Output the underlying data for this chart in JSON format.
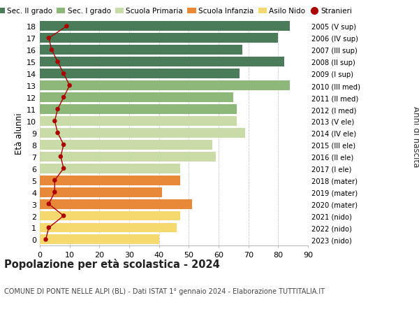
{
  "ages": [
    0,
    1,
    2,
    3,
    4,
    5,
    6,
    7,
    8,
    9,
    10,
    11,
    12,
    13,
    14,
    15,
    16,
    17,
    18
  ],
  "bar_values": [
    40,
    46,
    47,
    51,
    41,
    47,
    47,
    59,
    58,
    69,
    66,
    66,
    65,
    84,
    67,
    82,
    68,
    80,
    84
  ],
  "stranieri": [
    2,
    3,
    8,
    3,
    5,
    5,
    8,
    7,
    8,
    6,
    5,
    6,
    8,
    10,
    8,
    6,
    4,
    3,
    9
  ],
  "bar_colors": [
    "#f5d96e",
    "#f5d96e",
    "#f5d96e",
    "#e8893a",
    "#e8893a",
    "#e8893a",
    "#c9dca8",
    "#c9dca8",
    "#c9dca8",
    "#c9dca8",
    "#c9dca8",
    "#8db87a",
    "#8db87a",
    "#8db87a",
    "#4a7c59",
    "#4a7c59",
    "#4a7c59",
    "#4a7c59",
    "#4a7c59"
  ],
  "right_labels": [
    "2023 (nido)",
    "2022 (nido)",
    "2021 (nido)",
    "2020 (mater)",
    "2019 (mater)",
    "2018 (mater)",
    "2017 (I ele)",
    "2016 (II ele)",
    "2015 (III ele)",
    "2014 (IV ele)",
    "2013 (V ele)",
    "2012 (I med)",
    "2011 (II med)",
    "2010 (III med)",
    "2009 (I sup)",
    "2008 (II sup)",
    "2007 (III sup)",
    "2006 (IV sup)",
    "2005 (V sup)"
  ],
  "legend_labels": [
    "Sec. II grado",
    "Sec. I grado",
    "Scuola Primaria",
    "Scuola Infanzia",
    "Asilo Nido",
    "Stranieri"
  ],
  "legend_colors": [
    "#4a7c59",
    "#8db87a",
    "#c9dca8",
    "#e8893a",
    "#f5d96e",
    "#aa0000"
  ],
  "title": "Popolazione per età scolastica - 2024",
  "subtitle": "COMUNE DI PONTE NELLE ALPI (BL) - Dati ISTAT 1° gennaio 2024 - Elaborazione TUTTITALIA.IT",
  "ylabel_left": "Età alunni",
  "ylabel_right": "Anni di nascita",
  "xlim": [
    0,
    90
  ],
  "xticks": [
    0,
    10,
    20,
    30,
    40,
    50,
    60,
    70,
    80,
    90
  ],
  "background_color": "#ffffff",
  "grid_color": "#cccccc",
  "stranieri_color": "#aa0000",
  "bar_height": 0.82
}
